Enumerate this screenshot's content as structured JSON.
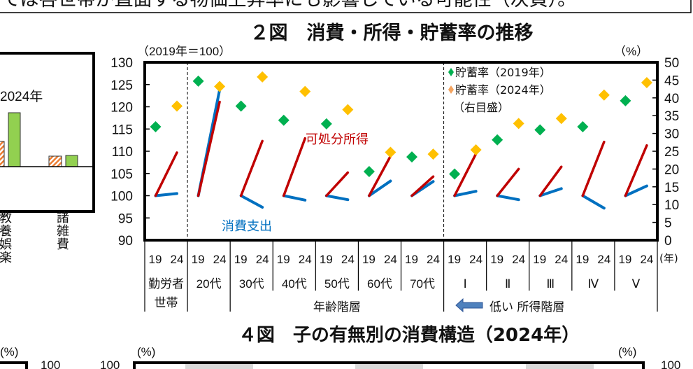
{
  "header_text": "ては各世帯が直面する物価上昇率にも影響している可能性（次頁）。",
  "left_panel": {
    "legend_label": "2024年",
    "categories": [
      "教養娯楽",
      "諸雑費"
    ]
  },
  "colors": {
    "income": "#C00000",
    "consumption": "#0070C0",
    "saving_2019": "#00B050",
    "saving_2024": "#FFC000",
    "legend_2024_marker": "#F4A460",
    "bar_green": "#92D050",
    "bar_hatch": "#ED7D31"
  },
  "chart_data": {
    "type": "line",
    "title": "２図　消費・所得・貯蓄率の推移",
    "left_axis_unit": "（2019年＝100）",
    "right_axis_unit": "（%）",
    "x_unit": "(年)",
    "ylim_left": [
      90,
      130
    ],
    "yticks_left": [
      "130",
      "125",
      "120",
      "115",
      "110",
      "105",
      "100",
      "95",
      "90"
    ],
    "ylim_right": [
      0,
      50
    ],
    "yticks_right": [
      "50",
      "45",
      "40",
      "35",
      "30",
      "25",
      "20",
      "15",
      "10",
      "5",
      "0"
    ],
    "year_labels": [
      "19",
      "24"
    ],
    "groups": [
      "勤労者\n世帯",
      "20代",
      "30代",
      "40代",
      "50代",
      "60代",
      "70代",
      "Ⅰ",
      "Ⅱ",
      "Ⅲ",
      "Ⅳ",
      "Ⅴ"
    ],
    "group_sections": [
      "年齢階層",
      "低い 所得階層"
    ],
    "series": [
      {
        "name": "可処分所得",
        "axis": "left",
        "values_2019": [
          100,
          100,
          100,
          100,
          100,
          100,
          100,
          100,
          100,
          100,
          100,
          100
        ],
        "values_2024": [
          109.7,
          121.1,
          112.3,
          112.9,
          105.2,
          108.9,
          104.3,
          109.4,
          106.0,
          106.5,
          112.1,
          111.3
        ]
      },
      {
        "name": "消費支出",
        "axis": "left",
        "values_2019": [
          100,
          100,
          100,
          100,
          100,
          100,
          100,
          100,
          100,
          100,
          100,
          100
        ],
        "values_2024": [
          100.5,
          123.8,
          97.4,
          99.0,
          99.1,
          103.3,
          103.2,
          101.0,
          99.1,
          101.6,
          97.2,
          102.2
        ]
      },
      {
        "name": "貯蓄率（2019年）",
        "axis": "right",
        "values": [
          31.9,
          44.7,
          37.7,
          33.7,
          32.7,
          19.3,
          23.4,
          18.6,
          28.2,
          31.0,
          31.9,
          39.2
        ]
      },
      {
        "name": "貯蓄率（2024年）",
        "axis": "right",
        "values": [
          37.7,
          43.2,
          45.9,
          41.8,
          36.7,
          24.7,
          24.2,
          25.4,
          32.8,
          34.2,
          40.8,
          44.3
        ]
      }
    ],
    "legend": {
      "position": "top-right-inner",
      "entries": [
        "貯蓄率（2019年）",
        "貯蓄率（2024年）"
      ],
      "note": "（右目盛）"
    },
    "annotations": {
      "income": "可処分所得",
      "consumption": "消費支出"
    }
  },
  "next_figure": {
    "title": "４図　子の有無別の消費構造（2024年）",
    "unit": "(%)",
    "tick": "100"
  }
}
